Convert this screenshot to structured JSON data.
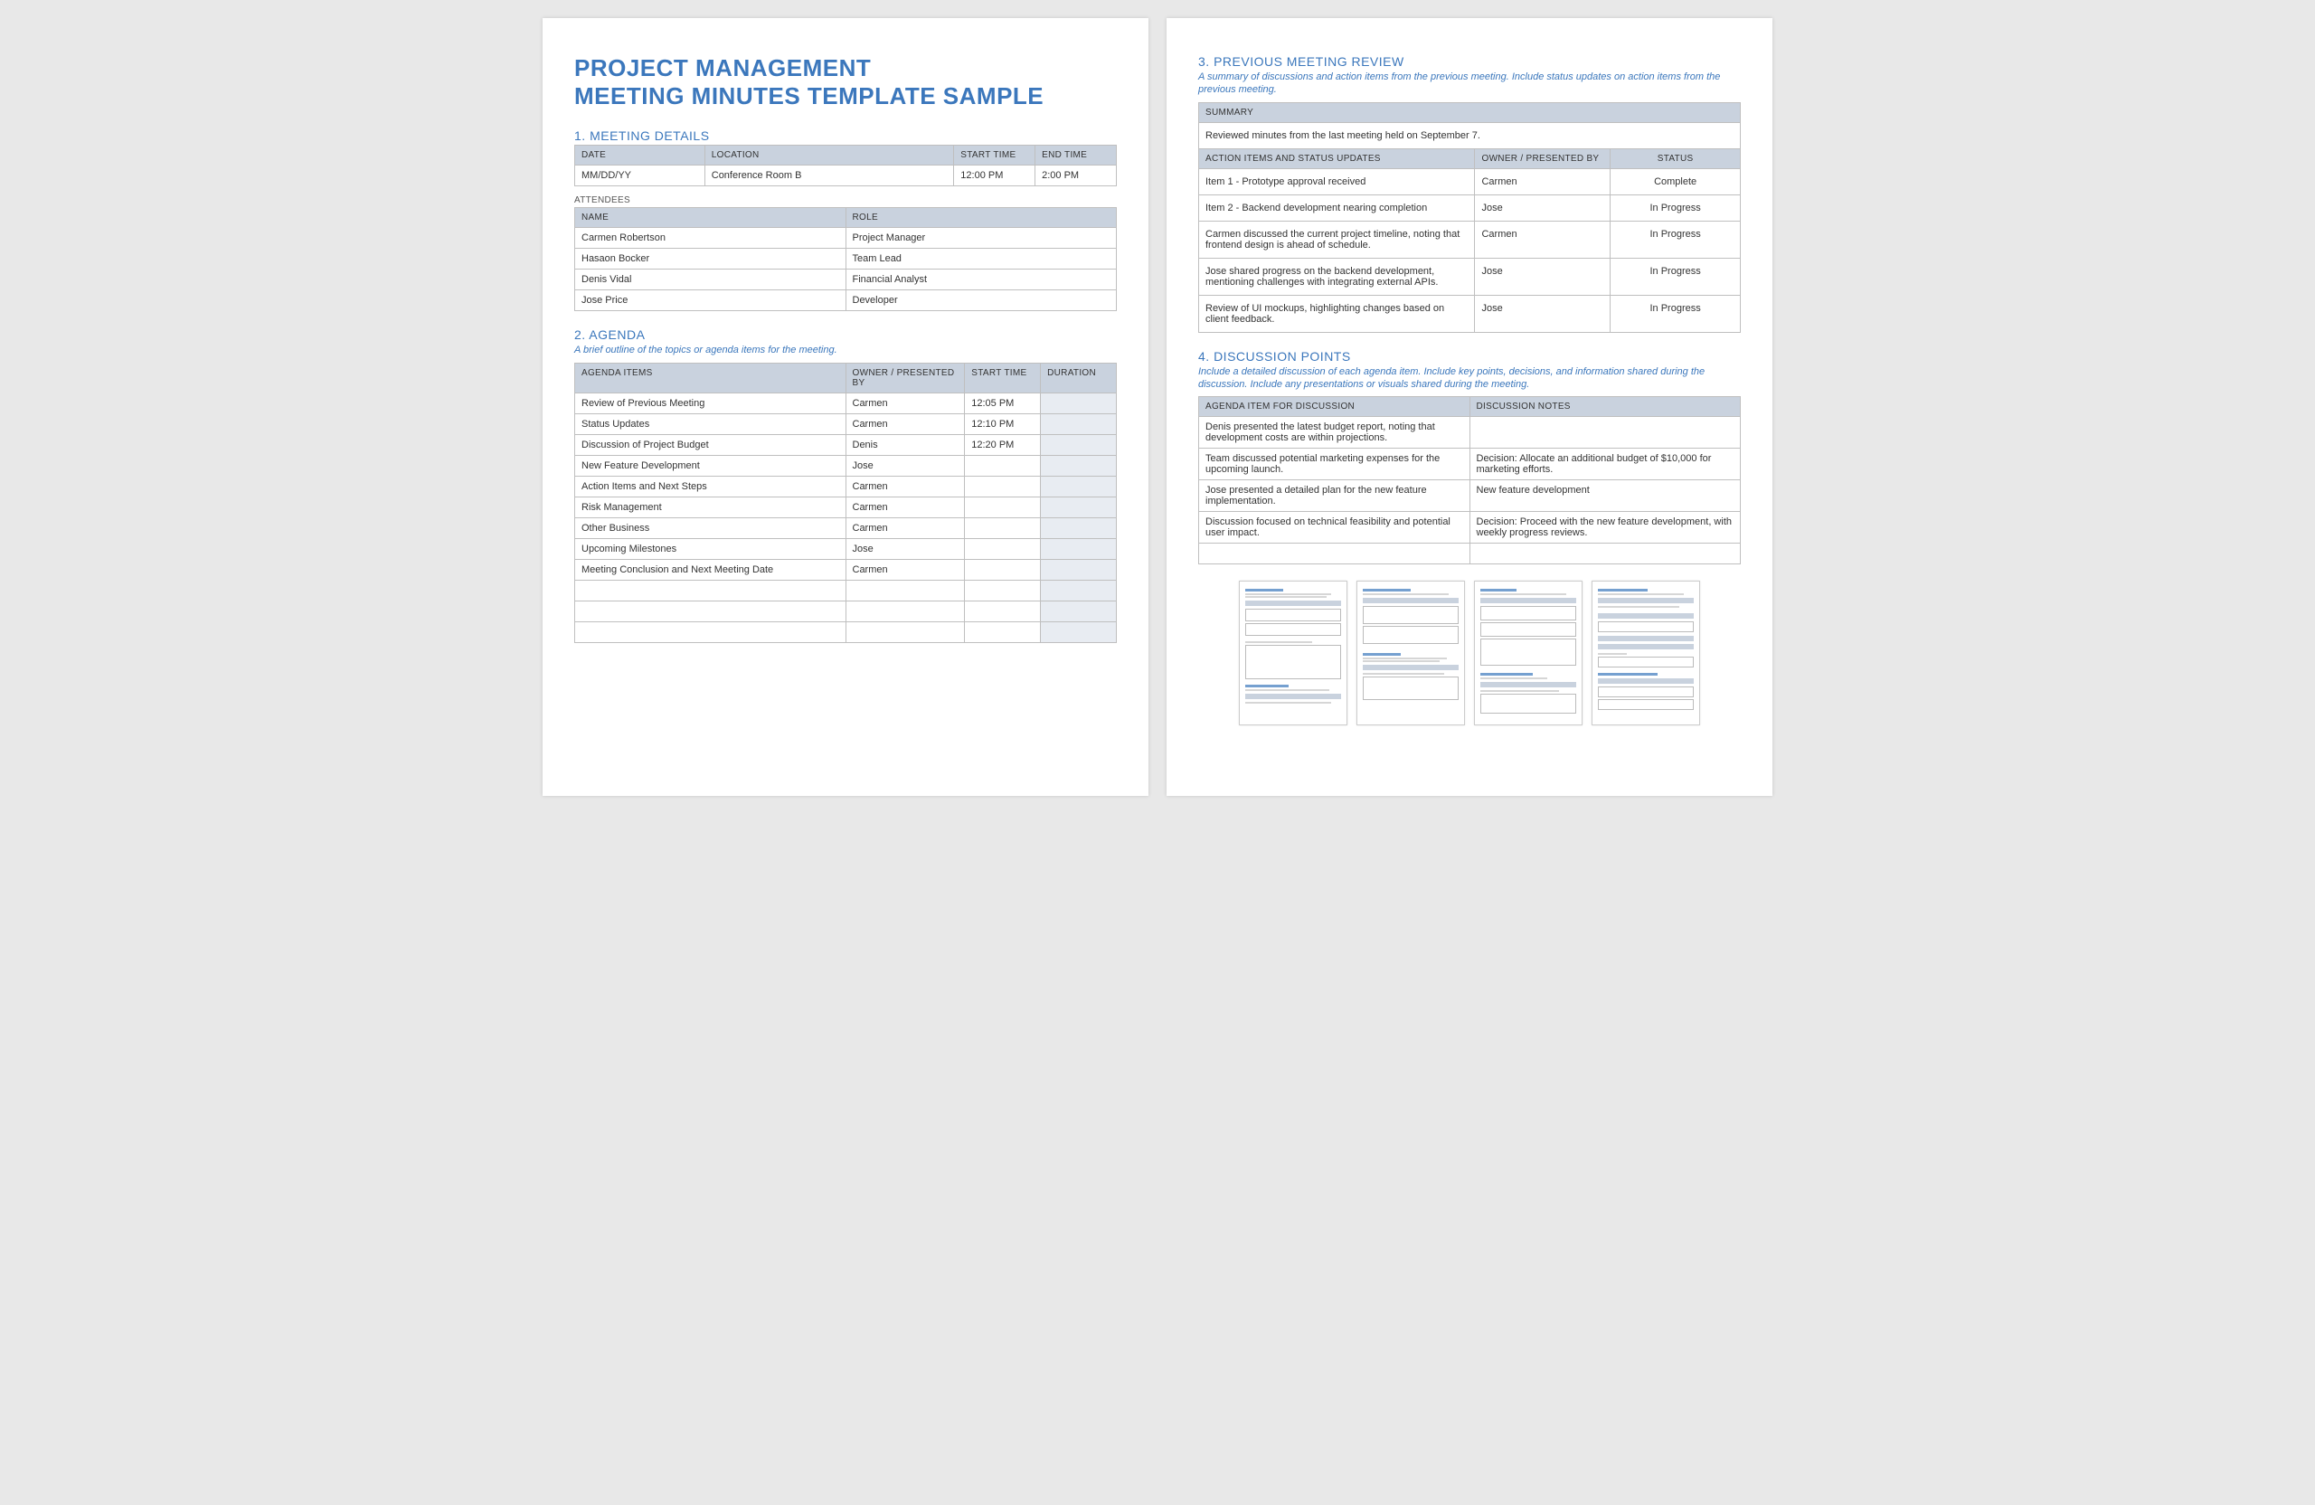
{
  "mainTitle1": "PROJECT MANAGEMENT",
  "mainTitle2": "MEETING MINUTES TEMPLATE SAMPLE",
  "section1": {
    "title": "1. MEETING DETAILS",
    "headers": {
      "date": "DATE",
      "location": "LOCATION",
      "start": "START TIME",
      "end": "END TIME"
    },
    "row": {
      "date": "MM/DD/YY",
      "location": "Conference Room B",
      "start": "12:00 PM",
      "end": "2:00 PM"
    },
    "attendeesLabel": "ATTENDEES",
    "attHeaders": {
      "name": "NAME",
      "role": "ROLE"
    },
    "attendees": [
      {
        "name": "Carmen Robertson",
        "role": "Project Manager"
      },
      {
        "name": "Hasaon Bocker",
        "role": "Team Lead"
      },
      {
        "name": "Denis Vidal",
        "role": "Financial Analyst"
      },
      {
        "name": "Jose Price",
        "role": "Developer"
      }
    ]
  },
  "section2": {
    "title": "2. AGENDA",
    "desc": "A brief outline of the topics or agenda items for the meeting.",
    "headers": {
      "item": "AGENDA ITEMS",
      "owner": "OWNER / PRESENTED BY",
      "start": "START TIME",
      "duration": "DURATION"
    },
    "rows": [
      {
        "item": "Review of Previous Meeting",
        "owner": "Carmen",
        "start": "12:05 PM",
        "duration": ""
      },
      {
        "item": "Status Updates",
        "owner": "Carmen",
        "start": "12:10 PM",
        "duration": ""
      },
      {
        "item": "Discussion of Project Budget",
        "owner": "Denis",
        "start": "12:20 PM",
        "duration": ""
      },
      {
        "item": "New Feature Development",
        "owner": "Jose",
        "start": "",
        "duration": ""
      },
      {
        "item": "Action Items and Next Steps",
        "owner": "Carmen",
        "start": "",
        "duration": ""
      },
      {
        "item": "Risk Management",
        "owner": "Carmen",
        "start": "",
        "duration": ""
      },
      {
        "item": "Other Business",
        "owner": "Carmen",
        "start": "",
        "duration": ""
      },
      {
        "item": "Upcoming Milestones",
        "owner": "Jose",
        "start": "",
        "duration": ""
      },
      {
        "item": "Meeting Conclusion and Next Meeting Date",
        "owner": "Carmen",
        "start": "",
        "duration": ""
      },
      {
        "item": "",
        "owner": "",
        "start": "",
        "duration": ""
      },
      {
        "item": "",
        "owner": "",
        "start": "",
        "duration": ""
      },
      {
        "item": "",
        "owner": "",
        "start": "",
        "duration": ""
      }
    ]
  },
  "section3": {
    "title": "3. PREVIOUS MEETING REVIEW",
    "desc": "A summary of discussions and action items from the previous meeting. Include status updates on action items from the previous meeting.",
    "summaryHeader": "SUMMARY",
    "summaryText": "Reviewed minutes from the last meeting held on September 7.",
    "headers": {
      "item": "ACTION ITEMS AND STATUS UPDATES",
      "owner": "OWNER / PRESENTED BY",
      "status": "STATUS"
    },
    "rows": [
      {
        "item": "Item 1 - Prototype approval received",
        "owner": "Carmen",
        "status": "Complete"
      },
      {
        "item": "Item 2 - Backend development nearing completion",
        "owner": "Jose",
        "status": "In Progress"
      },
      {
        "item": "Carmen discussed the current project timeline, noting that frontend design is ahead of schedule.",
        "owner": "Carmen",
        "status": "In Progress"
      },
      {
        "item": "Jose shared progress on the backend development, mentioning challenges with integrating external APIs.",
        "owner": "Jose",
        "status": "In Progress"
      },
      {
        "item": "Review of UI mockups, highlighting changes based on client feedback.",
        "owner": "Jose",
        "status": "In Progress"
      }
    ]
  },
  "section4": {
    "title": "4. DISCUSSION POINTS",
    "desc": "Include a detailed discussion of each agenda item. Include key points, decisions, and information shared during the discussion. Include any presentations or visuals shared during the meeting.",
    "headers": {
      "item": "AGENDA ITEM FOR DISCUSSION",
      "notes": "DISCUSSION NOTES"
    },
    "rows": [
      {
        "item": "Denis presented the latest budget report, noting that development costs are within projections.",
        "notes": ""
      },
      {
        "item": "Team discussed potential marketing expenses for the upcoming launch.",
        "notes": "Decision: Allocate an additional budget of $10,000 for marketing efforts."
      },
      {
        "item": "Jose presented a detailed plan for the new feature implementation.",
        "notes": "New feature development"
      },
      {
        "item": "Discussion focused on technical feasibility and potential user impact.",
        "notes": "Decision: Proceed with the new feature development, with weekly progress reviews."
      },
      {
        "item": "",
        "notes": ""
      }
    ]
  }
}
